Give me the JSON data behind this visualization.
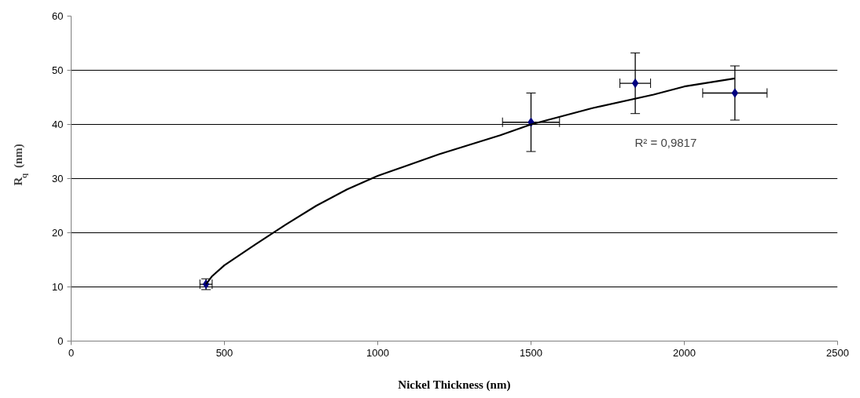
{
  "chart_data": {
    "type": "scatter",
    "xlabel": "Nickel Thickness (nm)",
    "ylabel": "R$_{q}$ (nm)",
    "series": [
      {
        "color": "#000080",
        "marker": "diamond",
        "x": [
          440,
          1500,
          1840,
          2165
        ],
        "values": [
          10.5,
          40.4,
          47.6,
          45.8
        ],
        "errors": [
          1,
          5.4,
          5.6,
          5
        ],
        "xerrors": [
          20,
          93,
          50,
          105
        ]
      },
      {
        "type": "line",
        "marker": "none",
        "color": "#000000",
        "x": [
          440,
          460,
          500,
          600,
          700,
          800,
          900,
          1000,
          1200,
          1400,
          1500,
          1700,
          1900,
          2000,
          2165
        ],
        "values": [
          10.5,
          12,
          14,
          17.8,
          21.5,
          25,
          28,
          30.5,
          34.5,
          38,
          40,
          43,
          45.5,
          47,
          48.5
        ]
      }
    ],
    "annotations": [
      "R² = 0,9817"
    ],
    "xlim": [
      0,
      2500
    ],
    "xticks": [
      0,
      500,
      1000,
      1500,
      2000,
      2500
    ],
    "ylim": [
      0,
      60
    ],
    "yticks": [
      0,
      10,
      20,
      30,
      40,
      50,
      60
    ],
    "grid": "y"
  }
}
